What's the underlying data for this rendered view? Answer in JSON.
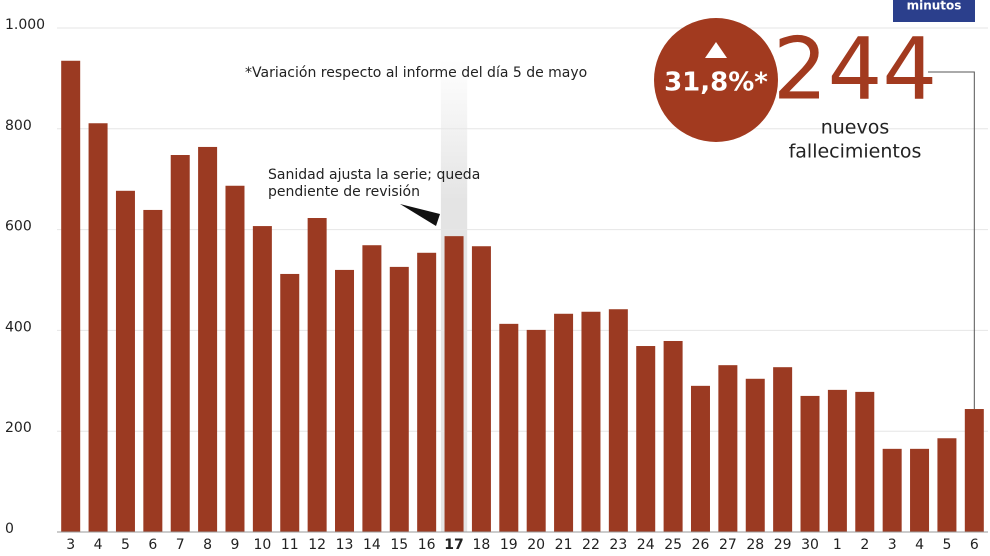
{
  "chart_data": {
    "type": "bar",
    "categories": [
      "3",
      "4",
      "5",
      "6",
      "7",
      "8",
      "9",
      "10",
      "11",
      "12",
      "13",
      "14",
      "15",
      "16",
      "17",
      "18",
      "19",
      "20",
      "21",
      "22",
      "23",
      "24",
      "25",
      "26",
      "27",
      "28",
      "29",
      "30",
      "1",
      "2",
      "3",
      "4",
      "5",
      "6"
    ],
    "values": [
      935,
      811,
      677,
      639,
      748,
      764,
      687,
      607,
      512,
      623,
      520,
      569,
      526,
      554,
      587,
      567,
      413,
      401,
      433,
      437,
      442,
      369,
      379,
      290,
      331,
      304,
      327,
      270,
      282,
      278,
      165,
      165,
      186,
      244
    ],
    "color": "#9b3a22",
    "ylim": [
      0,
      1000
    ],
    "yticks": [
      0,
      200,
      400,
      600,
      800,
      {
        "value": 1000,
        "label": "1.000"
      }
    ],
    "grid": true,
    "highlight_index": 14,
    "note": "*Variación respecto al informe del día 5 de mayo",
    "annotation": [
      "Sanidad ajusta la serie; queda",
      "pendiente de revisión"
    ],
    "badge": "31,8%*",
    "headline_number": "244",
    "headline_label": [
      "nuevos",
      "fallecimientos"
    ],
    "logo": "minutos"
  }
}
